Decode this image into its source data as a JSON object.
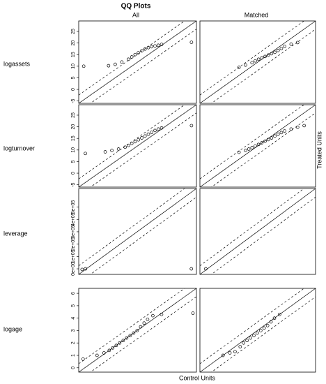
{
  "title": "QQ Plots",
  "columns": [
    "All",
    "Matched"
  ],
  "rows": [
    "logassets",
    "logturnover",
    "leverage",
    "logage"
  ],
  "xlabel": "Control Units",
  "ylabel": "Treated Units",
  "chart_data": [
    {
      "type": "scatter",
      "xlim": [
        -6,
        29.5
      ],
      "ylim": [
        -6,
        29.5
      ],
      "yticks": [
        -5,
        0,
        5,
        10,
        15,
        20,
        25
      ],
      "x": [
        -4.5,
        3,
        5,
        7,
        9,
        10,
        11,
        12,
        13,
        14,
        15,
        16,
        17,
        18,
        19,
        28
      ],
      "y": [
        10,
        10.2,
        10.8,
        11.8,
        13,
        14,
        15,
        15.8,
        16.6,
        17.4,
        18,
        18.4,
        18.7,
        19,
        19.4,
        20.3
      ]
    },
    {
      "type": "scatter",
      "xlim": [
        -6,
        29.5
      ],
      "ylim": [
        -6,
        29.5
      ],
      "x": [
        6,
        8,
        10,
        11,
        12,
        13,
        14,
        15,
        16,
        17,
        18,
        19,
        20,
        22,
        24
      ],
      "y": [
        9.5,
        10.5,
        11.5,
        12.3,
        13,
        13.6,
        14.2,
        14.8,
        15.4,
        16,
        16.8,
        17.6,
        18.5,
        19.5,
        20.2
      ]
    },
    {
      "type": "scatter",
      "xlim": [
        -6,
        29.5
      ],
      "ylim": [
        -6,
        29.5
      ],
      "yticks": [
        -5,
        0,
        5,
        10,
        15,
        20,
        25
      ],
      "x": [
        -4,
        2,
        4,
        6,
        8,
        9,
        10,
        11,
        12,
        13,
        14,
        15,
        16,
        17,
        18,
        19,
        28
      ],
      "y": [
        8.5,
        9.2,
        9.8,
        10.4,
        11.2,
        12,
        12.8,
        13.6,
        14.4,
        15.2,
        16,
        16.8,
        17.6,
        18.4,
        19,
        19.5,
        20.5
      ]
    },
    {
      "type": "scatter",
      "xlim": [
        -6,
        29.5
      ],
      "ylim": [
        -6,
        29.5
      ],
      "x": [
        6,
        8,
        9,
        10,
        11,
        12,
        13,
        14,
        15,
        16,
        17,
        18,
        19,
        20,
        22,
        24,
        26
      ],
      "y": [
        9,
        9.8,
        10.4,
        11,
        11.7,
        12.4,
        13.1,
        13.8,
        14.5,
        15.2,
        16,
        16.8,
        17.5,
        18.2,
        19,
        19.8,
        20.5
      ]
    },
    {
      "type": "scatter",
      "xlim": [
        -45000,
        650000
      ],
      "ylim": [
        -45000,
        650000
      ],
      "yticks": [
        {
          "value": 0,
          "label": "0e+00"
        },
        {
          "value": 100000,
          "label": "1e+05"
        },
        {
          "value": 200000,
          "label": "2e+05"
        },
        {
          "value": 300000,
          "label": "3e+05"
        },
        {
          "value": 400000,
          "label": "4e+05"
        },
        {
          "value": 500000,
          "label": "5e+05"
        }
      ],
      "x": [
        -25000,
        -5000,
        620000
      ],
      "y": [
        -5000,
        0,
        0
      ]
    },
    {
      "type": "scatter",
      "xlim": [
        -45000,
        650000
      ],
      "ylim": [
        -45000,
        650000
      ],
      "x": [
        -10000
      ],
      "y": [
        0
      ]
    },
    {
      "type": "scatter",
      "xlim": [
        -0.35,
        6.4
      ],
      "ylim": [
        -0.35,
        6.4
      ],
      "yticks": [
        0,
        1,
        2,
        3,
        4,
        5,
        6
      ],
      "x": [
        -0.1,
        0.7,
        1.1,
        1.4,
        1.6,
        1.8,
        2.0,
        2.2,
        2.4,
        2.6,
        2.8,
        3.0,
        3.2,
        3.4,
        3.6,
        3.9,
        4.4,
        6.2
      ],
      "y": [
        0.7,
        1.0,
        1.2,
        1.4,
        1.6,
        1.8,
        2.0,
        2.2,
        2.4,
        2.6,
        2.8,
        3.0,
        3.3,
        3.6,
        3.9,
        4.2,
        4.3,
        4.4
      ]
    },
    {
      "type": "scatter",
      "xlim": [
        -0.35,
        6.4
      ],
      "ylim": [
        -0.35,
        6.4
      ],
      "x": [
        1.0,
        1.4,
        1.7,
        2.0,
        2.2,
        2.4,
        2.6,
        2.8,
        3.0,
        3.2,
        3.4,
        3.6,
        3.8,
        4.0,
        4.3
      ],
      "y": [
        1.0,
        1.2,
        1.3,
        1.7,
        2.0,
        2.2,
        2.4,
        2.6,
        2.8,
        3.0,
        3.2,
        3.4,
        3.7,
        4.0,
        4.3
      ]
    }
  ]
}
